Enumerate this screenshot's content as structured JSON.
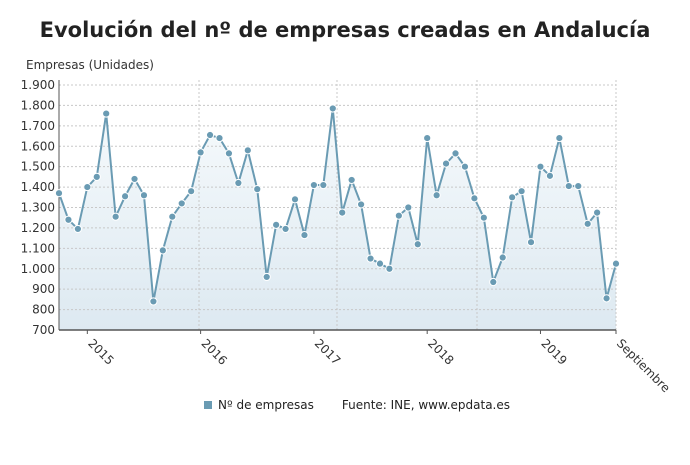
{
  "title": "Evolución del nº de empresas creadas en Andalucía",
  "chart_data": {
    "type": "area",
    "title": "Evolución del nº de empresas creadas en Andalucía",
    "ylabel": "Empresas (Unidades)",
    "xlabel": "",
    "ylim": [
      700,
      1900
    ],
    "yticks": [
      "700",
      "800",
      "900",
      "1.000",
      "1.100",
      "1.200",
      "1.300",
      "1.400",
      "1.500",
      "1.600",
      "1.700",
      "1.800",
      "1.900"
    ],
    "xticklabels": [
      {
        "label": "2015",
        "index": 3
      },
      {
        "label": "2016",
        "index": 15
      },
      {
        "label": "2017",
        "index": 27
      },
      {
        "label": "2018",
        "index": 39
      },
      {
        "label": "2019",
        "index": 51
      },
      {
        "label": "Septiembre",
        "index": 59
      }
    ],
    "grid": true,
    "legend_position": "bottom",
    "color": "#6a9bb3",
    "series": [
      {
        "name": "Nº de empresas",
        "x_start": "2014-10",
        "x_end": "2019-09",
        "values": [
          1370,
          1240,
          1195,
          1400,
          1450,
          1760,
          1255,
          1355,
          1440,
          1360,
          840,
          1090,
          1255,
          1320,
          1380,
          1570,
          1655,
          1640,
          1565,
          1420,
          1580,
          1390,
          960,
          1215,
          1195,
          1340,
          1165,
          1410,
          1410,
          1785,
          1275,
          1435,
          1315,
          1050,
          1025,
          1000,
          1260,
          1300,
          1120,
          1640,
          1360,
          1515,
          1565,
          1500,
          1345,
          1250,
          935,
          1055,
          1350,
          1380,
          1130,
          1500,
          1455,
          1640,
          1405,
          1405,
          1220,
          1275,
          855,
          1025
        ]
      }
    ]
  },
  "legend": {
    "series_label": "Nº de empresas",
    "source": "Fuente: INE, www.epdata.es"
  }
}
